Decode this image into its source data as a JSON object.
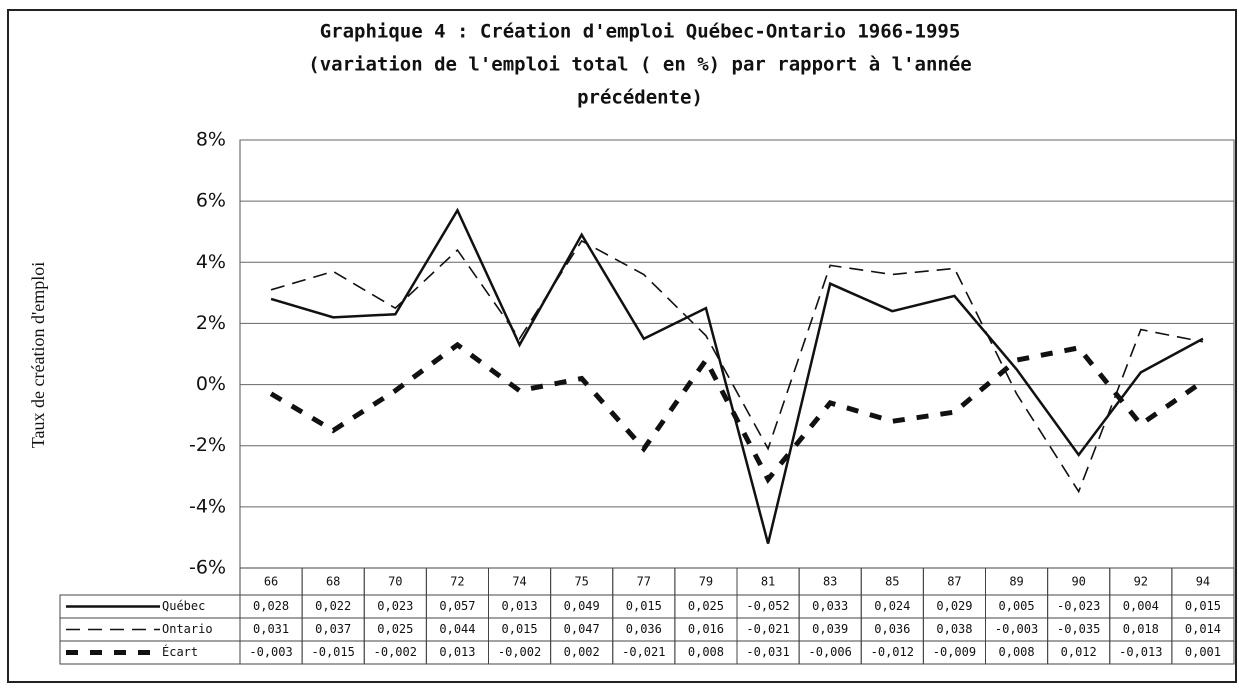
{
  "chart_data": {
    "type": "line",
    "title_lines": [
      "Graphique 4 : Création d'emploi Québec-Ontario 1966-1995",
      "(variation de l'emploi total ( en %) par rapport à l'année",
      "précédente)"
    ],
    "y_label": "Taux de création d'emploi",
    "categories": [
      "66",
      "68",
      "70",
      "72",
      "74",
      "75",
      "77",
      "79",
      "81",
      "83",
      "85",
      "87",
      "89",
      "90",
      "92",
      "94"
    ],
    "ylim": [
      -6,
      8
    ],
    "yticks": [
      {
        "value": -6,
        "label": "-6%"
      },
      {
        "value": -4,
        "label": "-4%"
      },
      {
        "value": -2,
        "label": "-2%"
      },
      {
        "value": 0,
        "label": "0%"
      },
      {
        "value": 2,
        "label": "2%"
      },
      {
        "value": 4,
        "label": "4%"
      },
      {
        "value": 6,
        "label": "6%"
      },
      {
        "value": 8,
        "label": "8%"
      }
    ],
    "grid": true,
    "series": [
      {
        "name": "Québec",
        "color": "#111111",
        "line_style": "solid",
        "values": [
          2.8,
          2.2,
          2.3,
          5.7,
          1.3,
          4.9,
          1.5,
          2.5,
          -5.2,
          3.3,
          2.4,
          2.9,
          0.5,
          -2.3,
          0.4,
          1.5
        ],
        "value_labels": [
          "0,028",
          "0,022",
          "0,023",
          "0,057",
          "0,013",
          "0,049",
          "0,015",
          "0,025",
          "-0,052",
          "0,033",
          "0,024",
          "0,029",
          "0,005",
          "-0,023",
          "0,004",
          "0,015"
        ]
      },
      {
        "name": "Ontario",
        "color": "#111111",
        "line_style": "dashed",
        "values": [
          3.1,
          3.7,
          2.5,
          4.4,
          1.5,
          4.7,
          3.6,
          1.6,
          -2.1,
          3.9,
          3.6,
          3.8,
          -0.3,
          -3.5,
          1.8,
          1.4
        ],
        "value_labels": [
          "0,031",
          "0,037",
          "0,025",
          "0,044",
          "0,015",
          "0,047",
          "0,036",
          "0,016",
          "-0,021",
          "0,039",
          "0,036",
          "0,038",
          "-0,003",
          "-0,035",
          "0,018",
          "0,014"
        ]
      },
      {
        "name": "Écart",
        "color": "#111111",
        "line_style": "thick-dashed",
        "values": [
          -0.3,
          -1.5,
          -0.2,
          1.3,
          -0.2,
          0.2,
          -2.1,
          0.8,
          -3.1,
          -0.6,
          -1.2,
          -0.9,
          0.8,
          1.2,
          -1.3,
          0.1
        ],
        "value_labels": [
          "-0,003",
          "-0,015",
          "-0,002",
          "0,013",
          "-0,002",
          "0,002",
          "-0,021",
          "0,008",
          "-0,031",
          "-0,006",
          "-0,012",
          "-0,009",
          "0,008",
          "0,012",
          "-0,013",
          "0,001"
        ]
      }
    ]
  }
}
